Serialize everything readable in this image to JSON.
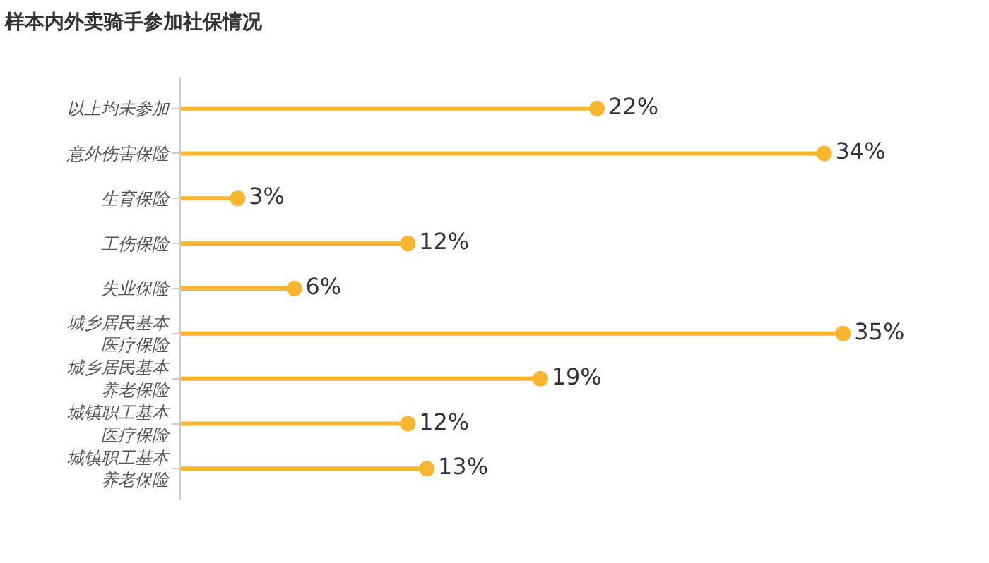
{
  "chart_data": {
    "type": "lollipop",
    "orientation": "horizontal",
    "title": "样本内外卖骑手参加社保情况",
    "categories": [
      "以上均未参加",
      "意外伤害保险",
      "生育保险",
      "工伤保险",
      "失业保险",
      "城乡居民基本医疗保险",
      "城乡居民基本养老保险",
      "城镇职工基本医疗保险",
      "城镇职工基本养老保险"
    ],
    "values": [
      22,
      34,
      3,
      12,
      6,
      35,
      19,
      12,
      13
    ],
    "value_labels": [
      "22%",
      "34%",
      "3%",
      "12%",
      "6%",
      "35%",
      "19%",
      "12%",
      "13%"
    ],
    "color": "#f7b530",
    "marker": "circle",
    "tick_labels": "y"
  }
}
